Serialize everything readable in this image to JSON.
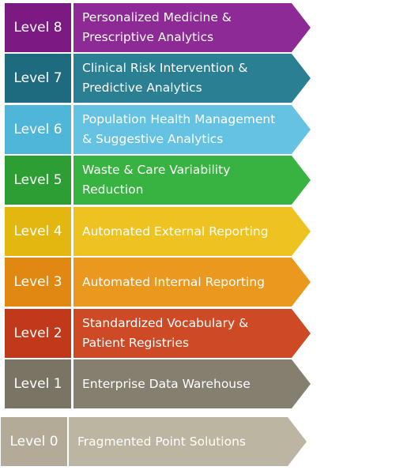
{
  "levels": [
    {
      "label": "Level 8",
      "text": "Personalized Medicine &\nPrescriptive Analytics",
      "left_color": "#7a1a82",
      "arrow_color": "#8e2a95"
    },
    {
      "label": "Level 7",
      "text": "Clinical Risk Intervention &\nPredictive Analytics",
      "left_color": "#1e6a7f",
      "arrow_color": "#2a7f93"
    },
    {
      "label": "Level 6",
      "text": "Population Health Management\n& Suggestive Analytics",
      "left_color": "#4fb6d9",
      "arrow_color": "#64c3e2"
    },
    {
      "label": "Level 5",
      "text": "Waste & Care Variability\nReduction",
      "left_color": "#2c9e34",
      "arrow_color": "#38b240"
    },
    {
      "label": "Level 4",
      "text": "Automated External Reporting",
      "left_color": "#e3b710",
      "arrow_color": "#eec220"
    },
    {
      "label": "Level 3",
      "text": "Automated Internal Reporting",
      "left_color": "#e08812",
      "arrow_color": "#ea981e"
    },
    {
      "label": "Level 2",
      "text": "Standardized Vocabulary &\nPatient Registries",
      "left_color": "#c2381b",
      "arrow_color": "#cd4a25"
    },
    {
      "label": "Level 1",
      "text": "Enterprise Data Warehouse",
      "left_color": "#7a7465",
      "arrow_color": "#857f70"
    },
    {
      "label": "Level 0",
      "text": "Fragmented Point Solutions",
      "left_color": "#b3ab97",
      "arrow_color": "#bcb5a2"
    }
  ]
}
